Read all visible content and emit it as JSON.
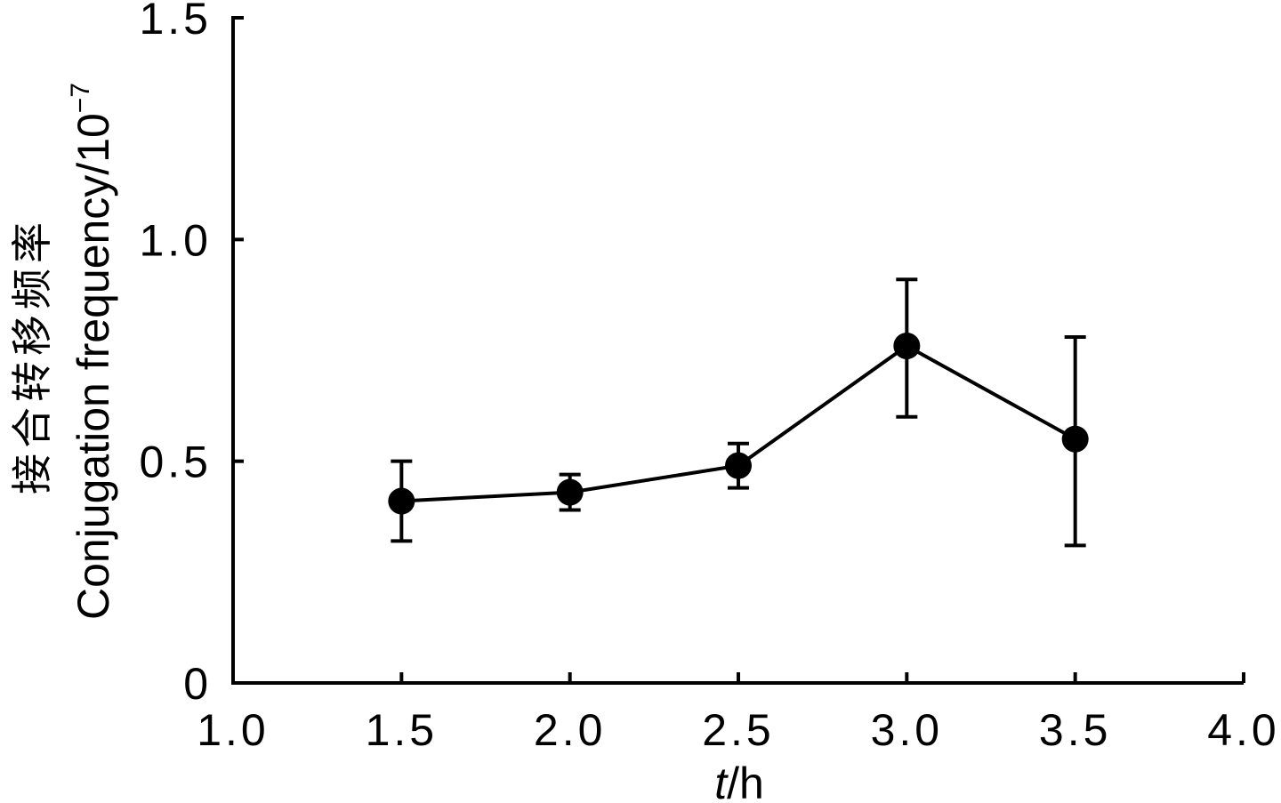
{
  "chart_data": {
    "type": "line",
    "xlabel_var": "t",
    "xlabel_unit": "/h",
    "ylabel_cn": "接合转移频率",
    "ylabel_en": "Conjugation frequency/10",
    "ylabel_exp": "−7",
    "xlim": [
      1.0,
      4.0
    ],
    "ylim": [
      0,
      1.5
    ],
    "x_ticks": [
      "1.0",
      "1.5",
      "2.0",
      "2.5",
      "3.0",
      "3.5",
      "4.0"
    ],
    "y_ticks": [
      "0",
      "0.5",
      "1.0",
      "1.5"
    ],
    "grid": false,
    "series": [
      {
        "x": [
          1.5,
          2.0,
          2.5,
          3.0,
          3.5
        ],
        "y": [
          0.41,
          0.43,
          0.49,
          0.76,
          0.55
        ],
        "err_low": [
          0.32,
          0.39,
          0.44,
          0.6,
          0.31
        ],
        "err_high": [
          0.5,
          0.47,
          0.54,
          0.91,
          0.78
        ]
      }
    ]
  }
}
